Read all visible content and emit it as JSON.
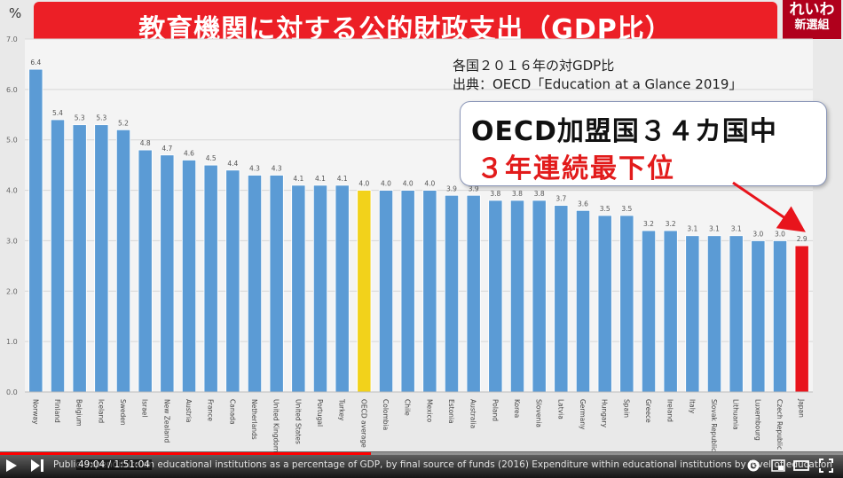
{
  "banner": {
    "title": "教育機関に対する公的財政支出（GDP比）"
  },
  "logo": {
    "line1": "れいわ",
    "line2": "新選組"
  },
  "axis": {
    "unit_label": "%"
  },
  "subtitle": {
    "line1": "各国２０１６年の対GDP比",
    "line2": "出典：OECD「Education at a Glance 2019」"
  },
  "callout": {
    "line1": "OECD加盟国３４カ国中",
    "line2": "３年連続最下位"
  },
  "chart_data": {
    "type": "bar",
    "ylim": [
      0,
      7
    ],
    "yticks": [
      "0.0",
      "1.0",
      "2.0",
      "3.0",
      "4.0",
      "5.0",
      "6.0",
      "7.0"
    ],
    "grid": true,
    "categories": [
      "Norway",
      "Finland",
      "Belgium",
      "Iceland",
      "Sweden",
      "Israel",
      "New Zealand",
      "Austria",
      "France",
      "Canada",
      "Netherlands",
      "United Kingdom",
      "United States",
      "Portugal",
      "Turkey",
      "OECD average",
      "Colombia",
      "Chile",
      "Mexico",
      "Estonia",
      "Australia",
      "Poland",
      "Korea",
      "Slovenia",
      "Latvia",
      "Germany",
      "Hungary",
      "Spain",
      "Greece",
      "Ireland",
      "Italy",
      "Slovak Republic",
      "Lithuania",
      "Luxembourg",
      "Czech Republic",
      "Japan"
    ],
    "values": [
      6.4,
      5.4,
      5.3,
      5.3,
      5.2,
      4.8,
      4.7,
      4.6,
      4.5,
      4.4,
      4.3,
      4.3,
      4.1,
      4.1,
      4.1,
      4.0,
      4.0,
      4.0,
      4.0,
      3.9,
      3.9,
      3.8,
      3.8,
      3.8,
      3.7,
      3.6,
      3.5,
      3.5,
      3.2,
      3.2,
      3.1,
      3.1,
      3.1,
      3.0,
      3.0,
      2.9
    ],
    "value_labels": [
      "6.4",
      "5.4",
      "5.3",
      "5.3",
      "5.2",
      "4.8",
      "4.7",
      "4.6",
      "4.5",
      "4.4",
      "4.3",
      "4.3",
      "4.1",
      "4.1",
      "4.1",
      "4.0",
      "4.0",
      "4.0",
      "4.0",
      "3.9",
      "3.9",
      "3.8",
      "3.8",
      "3.8",
      "3.7",
      "3.6",
      "3.5",
      "3.5",
      "3.2",
      "3.2",
      "3.1",
      "3.1",
      "3.1",
      "3.0",
      "3.0",
      "2.9"
    ],
    "colors": {
      "default": "#5b9bd5",
      "highlight_average": "#f2d21b",
      "highlight_japan": "#e8141c"
    }
  },
  "player": {
    "caption": "Public expenditure on educational institutions as a percentage of GDP, by final source of funds (2016) Expenditure within educational institutions by level of education",
    "time": "49:04 / 1:51:04",
    "progress": 0.44
  }
}
